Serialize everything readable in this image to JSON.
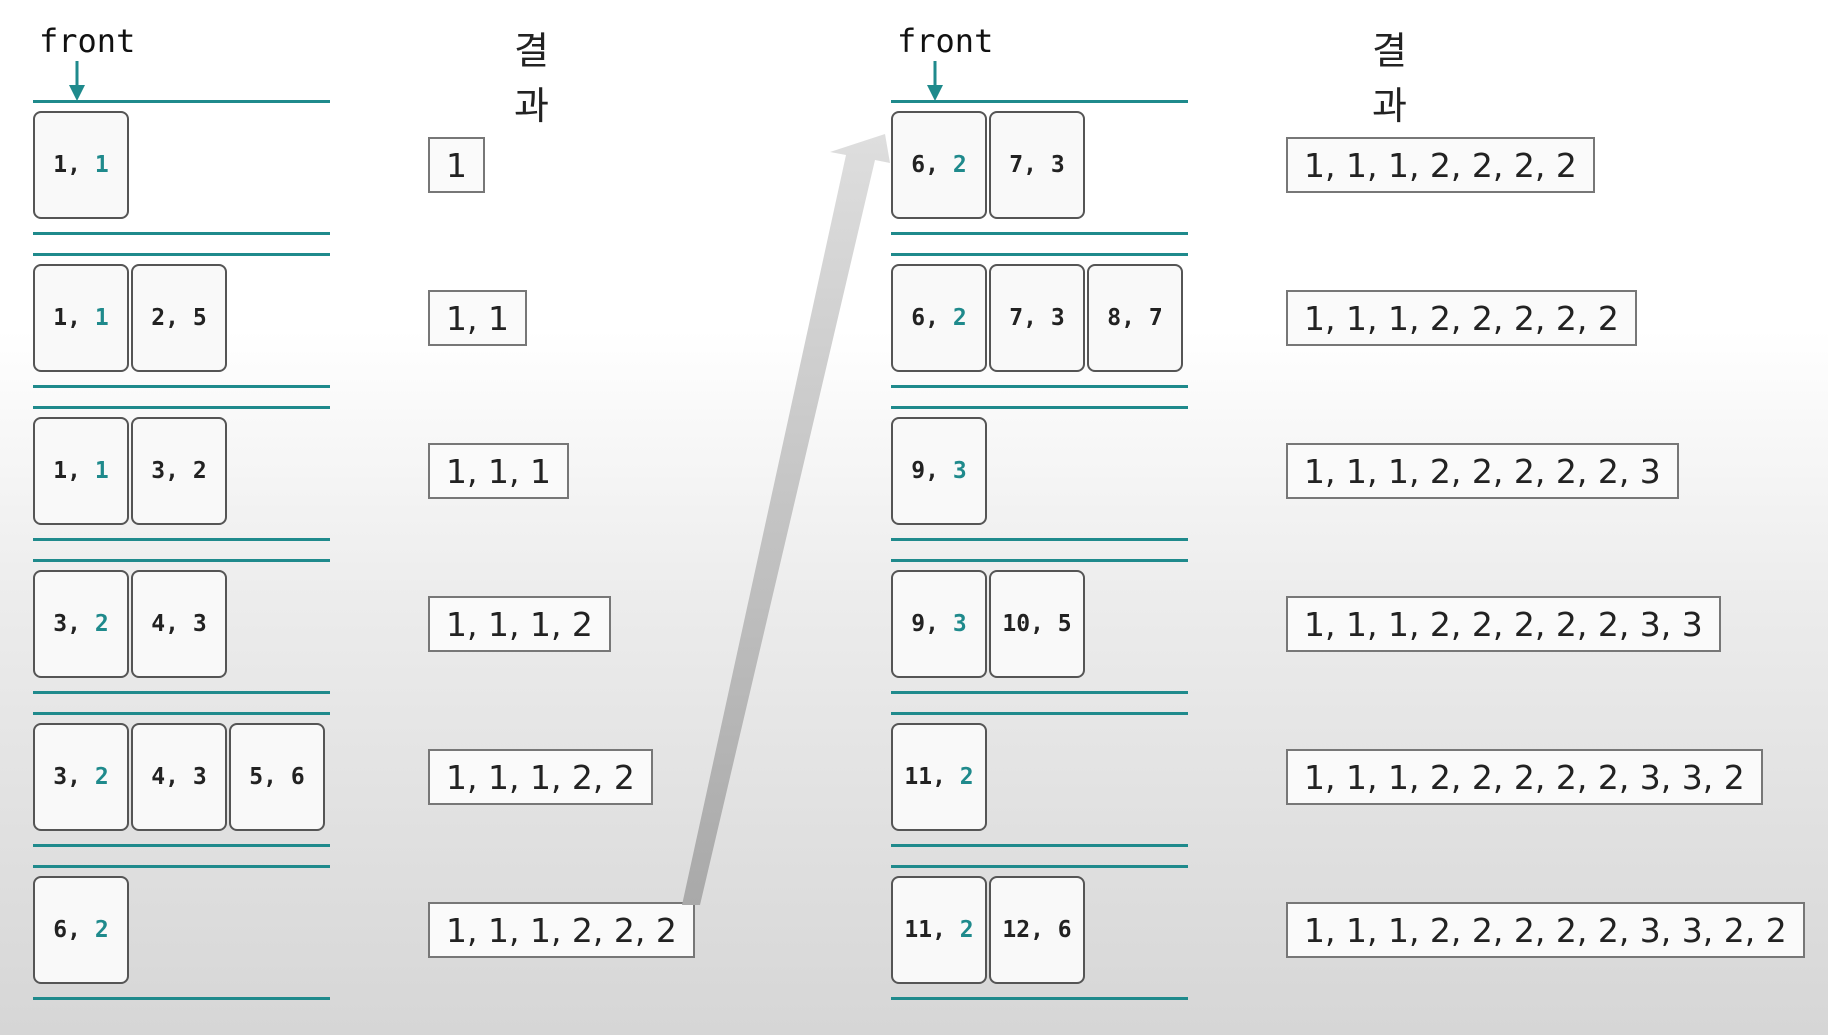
{
  "front_label": "front",
  "result_header": "결과",
  "colors": {
    "accent": "#1f8a8c",
    "border": "#555555"
  },
  "left_steps": [
    {
      "cells": [
        {
          "a": "1",
          "b": "1"
        }
      ],
      "result": "1"
    },
    {
      "cells": [
        {
          "a": "1",
          "b": "1"
        },
        {
          "a": "2",
          "b": "5",
          "plain": true
        }
      ],
      "result": "1, 1"
    },
    {
      "cells": [
        {
          "a": "1",
          "b": "1"
        },
        {
          "a": "3",
          "b": "2",
          "plain": true
        }
      ],
      "result": "1, 1, 1"
    },
    {
      "cells": [
        {
          "a": "3",
          "b": "2"
        },
        {
          "a": "4",
          "b": "3",
          "plain": true
        }
      ],
      "result": "1, 1, 1, 2"
    },
    {
      "cells": [
        {
          "a": "3",
          "b": "2"
        },
        {
          "a": "4",
          "b": "3",
          "plain": true
        },
        {
          "a": "5",
          "b": "6",
          "plain": true
        }
      ],
      "result": "1, 1, 1, 2, 2"
    },
    {
      "cells": [
        {
          "a": "6",
          "b": "2"
        }
      ],
      "result": "1, 1, 1, 2, 2, 2"
    }
  ],
  "right_steps": [
    {
      "cells": [
        {
          "a": "6",
          "b": "2"
        },
        {
          "a": "7",
          "b": "3",
          "plain": true
        }
      ],
      "result": "1, 1, 1, 2, 2, 2, 2"
    },
    {
      "cells": [
        {
          "a": "6",
          "b": "2"
        },
        {
          "a": "7",
          "b": "3",
          "plain": true
        },
        {
          "a": "8",
          "b": "7",
          "plain": true
        }
      ],
      "result": "1, 1, 1, 2, 2, 2, 2, 2"
    },
    {
      "cells": [
        {
          "a": "9",
          "b": "3"
        }
      ],
      "result": "1, 1, 1, 2, 2, 2, 2, 2, 3"
    },
    {
      "cells": [
        {
          "a": "9",
          "b": "3"
        },
        {
          "a": "10",
          "b": "5",
          "plain": true
        }
      ],
      "result": "1, 1, 1, 2, 2, 2, 2, 2, 3, 3"
    },
    {
      "cells": [
        {
          "a": "11",
          "b": "2"
        }
      ],
      "result": "1, 1, 1, 2, 2, 2, 2, 2, 3, 3, 2"
    },
    {
      "cells": [
        {
          "a": "11",
          "b": "2"
        },
        {
          "a": "12",
          "b": "6",
          "plain": true
        }
      ],
      "result": "1, 1, 1, 2, 2, 2, 2, 2, 3, 3, 2, 2"
    }
  ]
}
